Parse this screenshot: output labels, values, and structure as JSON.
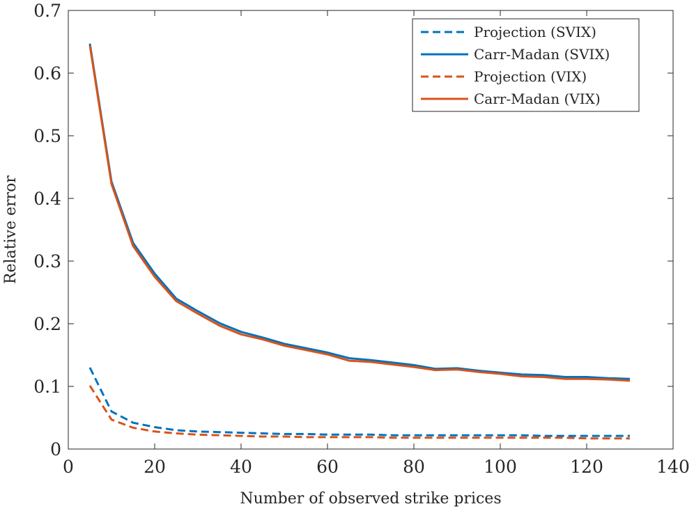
{
  "chart_data": {
    "type": "line",
    "title": "",
    "xlabel": "Number of observed strike prices",
    "ylabel": "Relative error",
    "xlim": [
      0,
      140
    ],
    "ylim": [
      0,
      0.7
    ],
    "xticks": [
      "0",
      "20",
      "40",
      "60",
      "80",
      "100",
      "120",
      "140"
    ],
    "yticks": [
      "0",
      "0.1",
      "0.2",
      "0.3",
      "0.4",
      "0.5",
      "0.6",
      "0.7"
    ],
    "grid": false,
    "legend_position": "top-right",
    "x": [
      5,
      10,
      15,
      20,
      25,
      30,
      35,
      40,
      45,
      50,
      55,
      60,
      65,
      70,
      75,
      80,
      85,
      90,
      95,
      100,
      105,
      110,
      115,
      120,
      125,
      130
    ],
    "series": [
      {
        "name": "Projection (SVIX)",
        "color": "#0072BD",
        "style": "dashed",
        "values": [
          0.13,
          0.06,
          0.042,
          0.035,
          0.03,
          0.028,
          0.027,
          0.026,
          0.025,
          0.024,
          0.024,
          0.023,
          0.023,
          0.023,
          0.022,
          0.022,
          0.022,
          0.022,
          0.022,
          0.022,
          0.022,
          0.021,
          0.021,
          0.021,
          0.021,
          0.021
        ]
      },
      {
        "name": "Carr-Madan (SVIX)",
        "color": "#0072BD",
        "style": "solid",
        "values": [
          0.647,
          0.427,
          0.329,
          0.28,
          0.24,
          0.22,
          0.201,
          0.187,
          0.178,
          0.168,
          0.161,
          0.154,
          0.145,
          0.142,
          0.138,
          0.134,
          0.128,
          0.129,
          0.125,
          0.122,
          0.119,
          0.118,
          0.115,
          0.115,
          0.113,
          0.112
        ]
      },
      {
        "name": "Projection (VIX)",
        "color": "#D95319",
        "style": "dashed",
        "values": [
          0.101,
          0.047,
          0.034,
          0.028,
          0.025,
          0.023,
          0.022,
          0.021,
          0.02,
          0.02,
          0.019,
          0.019,
          0.019,
          0.019,
          0.018,
          0.018,
          0.018,
          0.018,
          0.018,
          0.018,
          0.018,
          0.018,
          0.018,
          0.017,
          0.017,
          0.017
        ]
      },
      {
        "name": "Carr-Madan (VIX)",
        "color": "#D95319",
        "style": "solid",
        "values": [
          0.644,
          0.423,
          0.324,
          0.275,
          0.236,
          0.216,
          0.197,
          0.183,
          0.175,
          0.165,
          0.158,
          0.151,
          0.141,
          0.139,
          0.135,
          0.131,
          0.126,
          0.127,
          0.123,
          0.12,
          0.116,
          0.115,
          0.112,
          0.112,
          0.111,
          0.109
        ]
      }
    ]
  }
}
